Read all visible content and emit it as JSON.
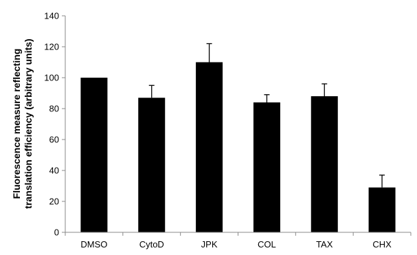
{
  "chart_data": {
    "type": "bar",
    "title": "",
    "xlabel": "",
    "ylabel_lines": [
      "Fluorescence measure reflecting",
      "translation efficiency (arbitrary units)"
    ],
    "categories": [
      "DMSO",
      "CytoD",
      "JPK",
      "COL",
      "TAX",
      "CHX"
    ],
    "values": [
      100,
      87,
      110,
      84,
      88,
      29
    ],
    "error_plus": [
      0,
      8,
      12,
      5,
      8,
      8
    ],
    "ylim": [
      0,
      140
    ],
    "yticks": [
      0,
      20,
      40,
      60,
      80,
      100,
      120,
      140
    ],
    "grid": false,
    "legend": "none",
    "bar_color": "#000000"
  }
}
